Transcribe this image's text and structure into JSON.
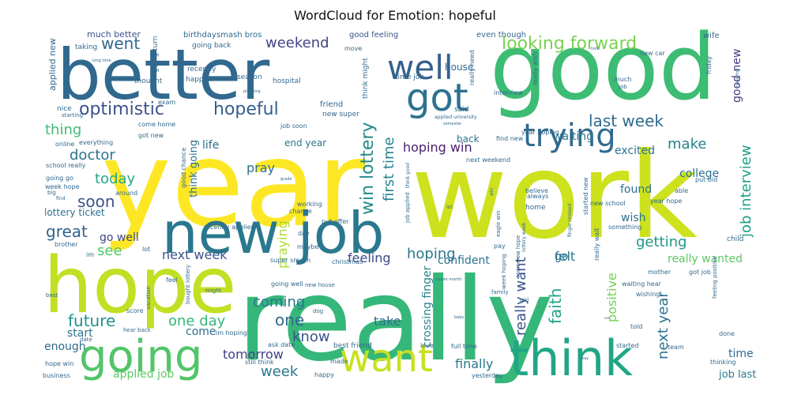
{
  "title": "WordCloud for Emotion: hopeful",
  "words": [
    {
      "text": "year",
      "color": "#fde725"
    },
    {
      "text": "work",
      "color": "#cde11d"
    },
    {
      "text": "really",
      "color": "#35b779"
    },
    {
      "text": "good",
      "color": "#3dbc74"
    },
    {
      "text": "better",
      "color": "#31688e"
    },
    {
      "text": "hope",
      "color": "#c2df23"
    },
    {
      "text": "new job",
      "color": "#2a788e"
    },
    {
      "text": "think",
      "color": "#21a685"
    },
    {
      "text": "going",
      "color": "#52c569"
    },
    {
      "text": "want",
      "color": "#c8e020"
    },
    {
      "text": "got",
      "color": "#2c728e"
    },
    {
      "text": "well",
      "color": "#35608d"
    },
    {
      "text": "trying",
      "color": "#306a8e"
    },
    {
      "text": "looking forward",
      "color": "#7ad151"
    },
    {
      "text": "optimistic",
      "color": "#3b528b"
    },
    {
      "text": "hopeful",
      "color": "#355f8d"
    },
    {
      "text": "went",
      "color": "#31688e"
    },
    {
      "text": "weekend",
      "color": "#414487"
    },
    {
      "text": "win lottery",
      "color": "#228c8d"
    },
    {
      "text": "first time",
      "color": "#26828e"
    },
    {
      "text": "last week",
      "color": "#2f6c8e"
    },
    {
      "text": "make",
      "color": "#26828e"
    },
    {
      "text": "hoping win",
      "color": "#481f70"
    },
    {
      "text": "job interview",
      "color": "#1fa088"
    },
    {
      "text": "good new",
      "color": "#443983"
    },
    {
      "text": "thing",
      "color": "#3dbc74"
    },
    {
      "text": "doctor",
      "color": "#2c728e"
    },
    {
      "text": "today",
      "color": "#22a884"
    },
    {
      "text": "soon",
      "color": "#3b528b"
    },
    {
      "text": "great",
      "color": "#33638d"
    },
    {
      "text": "see",
      "color": "#56c667"
    },
    {
      "text": "go well",
      "color": "#414487"
    },
    {
      "text": "pray",
      "color": "#2d708e"
    },
    {
      "text": "praying",
      "color": "#addc30"
    },
    {
      "text": "hoping",
      "color": "#2a788e"
    },
    {
      "text": "feeling",
      "color": "#3e4a89"
    },
    {
      "text": "getting",
      "color": "#1f958b"
    },
    {
      "text": "next week",
      "color": "#3b528b"
    },
    {
      "text": "future",
      "color": "#20928c"
    },
    {
      "text": "one day",
      "color": "#35b779"
    },
    {
      "text": "coming",
      "color": "#2a788e"
    },
    {
      "text": "one",
      "color": "#31688e"
    },
    {
      "text": "know",
      "color": "#3b528b"
    },
    {
      "text": "tomorrow",
      "color": "#424086"
    },
    {
      "text": "week",
      "color": "#2a788e"
    },
    {
      "text": "faith",
      "color": "#20a486"
    },
    {
      "text": "felt",
      "color": "#29798e"
    },
    {
      "text": "positive",
      "color": "#75d054"
    },
    {
      "text": "next year",
      "color": "#2c728e"
    },
    {
      "text": "really want",
      "color": "#3b528b"
    },
    {
      "text": "crossing finger",
      "color": "#26828e"
    },
    {
      "text": "confident",
      "color": "#2c728e"
    },
    {
      "text": "take",
      "color": "#2e6e8e"
    },
    {
      "text": "finally",
      "color": "#2a788e"
    },
    {
      "text": "life",
      "color": "#2f6b8e"
    },
    {
      "text": "end year",
      "color": "#2a788e"
    },
    {
      "text": "waiting",
      "color": "#2a788e"
    },
    {
      "text": "excited",
      "color": "#2c728e"
    },
    {
      "text": "college",
      "color": "#2c738e"
    },
    {
      "text": "found",
      "color": "#2c728e"
    },
    {
      "text": "wish",
      "color": "#2c728e"
    },
    {
      "text": "really wanted",
      "color": "#5ec962"
    },
    {
      "text": "applied job",
      "color": "#5ec962"
    },
    {
      "text": "enough",
      "color": "#2f6b8e"
    },
    {
      "text": "start",
      "color": "#2c728e"
    },
    {
      "text": "come",
      "color": "#2f6b8e"
    },
    {
      "text": "time",
      "color": "#2f6b8e"
    },
    {
      "text": "job last",
      "color": "#2a788e"
    },
    {
      "text": "back",
      "color": "#2c728e"
    },
    {
      "text": "think going",
      "color": "#2c728e"
    },
    {
      "text": "lottery ticket",
      "color": "#2c728e"
    },
    {
      "text": "go",
      "color": "#2c728e"
    },
    {
      "text": "applied new",
      "color": "#31688e"
    },
    {
      "text": "much better",
      "color": "#3b528b"
    },
    {
      "text": "good feeling",
      "color": "#3b528b"
    },
    {
      "text": "even though",
      "color": "#31688e"
    },
    {
      "text": "wife",
      "color": "#31688e"
    },
    {
      "text": "birthday",
      "color": "#31688e"
    },
    {
      "text": "smash bros",
      "color": "#31688e"
    },
    {
      "text": "house",
      "color": "#31688e"
    },
    {
      "text": "applied university",
      "color": "#31688e"
    },
    {
      "text": "interview",
      "color": "#31688e"
    },
    {
      "text": "friend",
      "color": "#31688e"
    },
    {
      "text": "hospital",
      "color": "#31688e"
    },
    {
      "text": "recently",
      "color": "#31688e"
    },
    {
      "text": "happen",
      "color": "#31688e"
    },
    {
      "text": "thought",
      "color": "#31688e"
    },
    {
      "text": "season",
      "color": "#31688e"
    },
    {
      "text": "going back",
      "color": "#31688e"
    },
    {
      "text": "going turn",
      "color": "#31688e"
    },
    {
      "text": "taking",
      "color": "#31688e"
    },
    {
      "text": "exam",
      "color": "#31688e"
    },
    {
      "text": "nice",
      "color": "#31688e"
    },
    {
      "text": "come home",
      "color": "#31688e"
    },
    {
      "text": "got new",
      "color": "#31688e"
    },
    {
      "text": "job soon",
      "color": "#31688e"
    },
    {
      "text": "new super",
      "color": "#31688e"
    },
    {
      "text": "said",
      "color": "#31688e"
    },
    {
      "text": "find new",
      "color": "#31688e"
    },
    {
      "text": "next weekend",
      "color": "#31688e"
    },
    {
      "text": "year hoping",
      "color": "#31688e"
    },
    {
      "text": "new car",
      "color": "#31688e"
    },
    {
      "text": "much",
      "color": "#31688e"
    },
    {
      "text": "job",
      "color": "#31688e"
    },
    {
      "text": "time job",
      "color": "#31688e"
    },
    {
      "text": "think might",
      "color": "#31688e"
    },
    {
      "text": "really need",
      "color": "#31688e"
    },
    {
      "text": "really wish",
      "color": "#31688e"
    },
    {
      "text": "friday",
      "color": "#31688e"
    },
    {
      "text": "move",
      "color": "#31688e"
    },
    {
      "text": "starting",
      "color": "#31688e"
    },
    {
      "text": "online",
      "color": "#31688e"
    },
    {
      "text": "everything",
      "color": "#31688e"
    },
    {
      "text": "school really",
      "color": "#31688e"
    },
    {
      "text": "going go",
      "color": "#31688e"
    },
    {
      "text": "week hope",
      "color": "#31688e"
    },
    {
      "text": "big",
      "color": "#31688e"
    },
    {
      "text": "around",
      "color": "#31688e"
    },
    {
      "text": "good chance",
      "color": "#31688e"
    },
    {
      "text": "recently applied",
      "color": "#31688e"
    },
    {
      "text": "put offer",
      "color": "#31688e"
    },
    {
      "text": "working",
      "color": "#31688e"
    },
    {
      "text": "chance",
      "color": "#31688e"
    },
    {
      "text": "job applied",
      "color": "#31688e"
    },
    {
      "text": "think good",
      "color": "#31688e"
    },
    {
      "text": "eagle win",
      "color": "#31688e"
    },
    {
      "text": "believe",
      "color": "#31688e"
    },
    {
      "text": "always",
      "color": "#31688e"
    },
    {
      "text": "home",
      "color": "#31688e"
    },
    {
      "text": "new school",
      "color": "#31688e"
    },
    {
      "text": "able",
      "color": "#31688e"
    },
    {
      "text": "put bid",
      "color": "#31688e"
    },
    {
      "text": "year hope",
      "color": "#31688e"
    },
    {
      "text": "something",
      "color": "#31688e"
    },
    {
      "text": "started new",
      "color": "#31688e"
    },
    {
      "text": "child",
      "color": "#31688e"
    },
    {
      "text": "brother",
      "color": "#31688e"
    },
    {
      "text": "im",
      "color": "#31688e"
    },
    {
      "text": "lot",
      "color": "#31688e"
    },
    {
      "text": "super smash",
      "color": "#31688e"
    },
    {
      "text": "christmas",
      "color": "#31688e"
    },
    {
      "text": "maybe",
      "color": "#31688e"
    },
    {
      "text": "day",
      "color": "#31688e"
    },
    {
      "text": "pay",
      "color": "#31688e"
    },
    {
      "text": "mother",
      "color": "#31688e"
    },
    {
      "text": "got job",
      "color": "#31688e"
    },
    {
      "text": "really wait",
      "color": "#31688e"
    },
    {
      "text": "waiting hear",
      "color": "#31688e"
    },
    {
      "text": "wishing",
      "color": "#31688e"
    },
    {
      "text": "feeling positive",
      "color": "#31688e"
    },
    {
      "text": "told",
      "color": "#31688e"
    },
    {
      "text": "done",
      "color": "#31688e"
    },
    {
      "text": "team",
      "color": "#31688e"
    },
    {
      "text": "started",
      "color": "#31688e"
    },
    {
      "text": "thinking",
      "color": "#31688e"
    },
    {
      "text": "feel",
      "color": "#31688e"
    },
    {
      "text": "might",
      "color": "#31688e"
    },
    {
      "text": "best",
      "color": "#31688e"
    },
    {
      "text": "score",
      "color": "#31688e"
    },
    {
      "text": "bought lottery",
      "color": "#31688e"
    },
    {
      "text": "vacation",
      "color": "#31688e"
    },
    {
      "text": "hear back",
      "color": "#31688e"
    },
    {
      "text": "date",
      "color": "#31688e"
    },
    {
      "text": "im hoping",
      "color": "#31688e"
    },
    {
      "text": "going well",
      "color": "#31688e"
    },
    {
      "text": "dog",
      "color": "#31688e"
    },
    {
      "text": "new house",
      "color": "#31688e"
    },
    {
      "text": "week hoping",
      "color": "#31688e"
    },
    {
      "text": "tomorrow hope",
      "color": "#31688e"
    },
    {
      "text": "lottery week",
      "color": "#31688e"
    },
    {
      "text": "finger crossed",
      "color": "#31688e"
    },
    {
      "text": "girl",
      "color": "#31688e"
    },
    {
      "text": "family",
      "color": "#31688e"
    },
    {
      "text": "ask date",
      "color": "#31688e"
    },
    {
      "text": "still think",
      "color": "#31688e"
    },
    {
      "text": "made",
      "color": "#31688e"
    },
    {
      "text": "happy",
      "color": "#31688e"
    },
    {
      "text": "best friend",
      "color": "#31688e"
    },
    {
      "text": "love",
      "color": "#31688e"
    },
    {
      "text": "full time",
      "color": "#31688e"
    },
    {
      "text": "yesterday",
      "color": "#31688e"
    },
    {
      "text": "hope win",
      "color": "#31688e"
    },
    {
      "text": "business",
      "color": "#31688e"
    },
    {
      "text": "win",
      "color": "#31688e"
    },
    {
      "text": "lot",
      "color": "#31688e"
    },
    {
      "text": "find",
      "color": "#31688e"
    },
    {
      "text": "long time",
      "color": "#31688e"
    },
    {
      "text": "planning",
      "color": "#31688e"
    },
    {
      "text": "grade",
      "color": "#31688e"
    },
    {
      "text": "semester",
      "color": "#31688e"
    },
    {
      "text": "hold",
      "color": "#31688e"
    },
    {
      "text": "hope find",
      "color": "#31688e"
    },
    {
      "text": "couple month",
      "color": "#31688e"
    },
    {
      "text": "baby",
      "color": "#31688e"
    },
    {
      "text": "see",
      "color": "#31688e"
    },
    {
      "text": "way",
      "color": "#31688e"
    }
  ]
}
